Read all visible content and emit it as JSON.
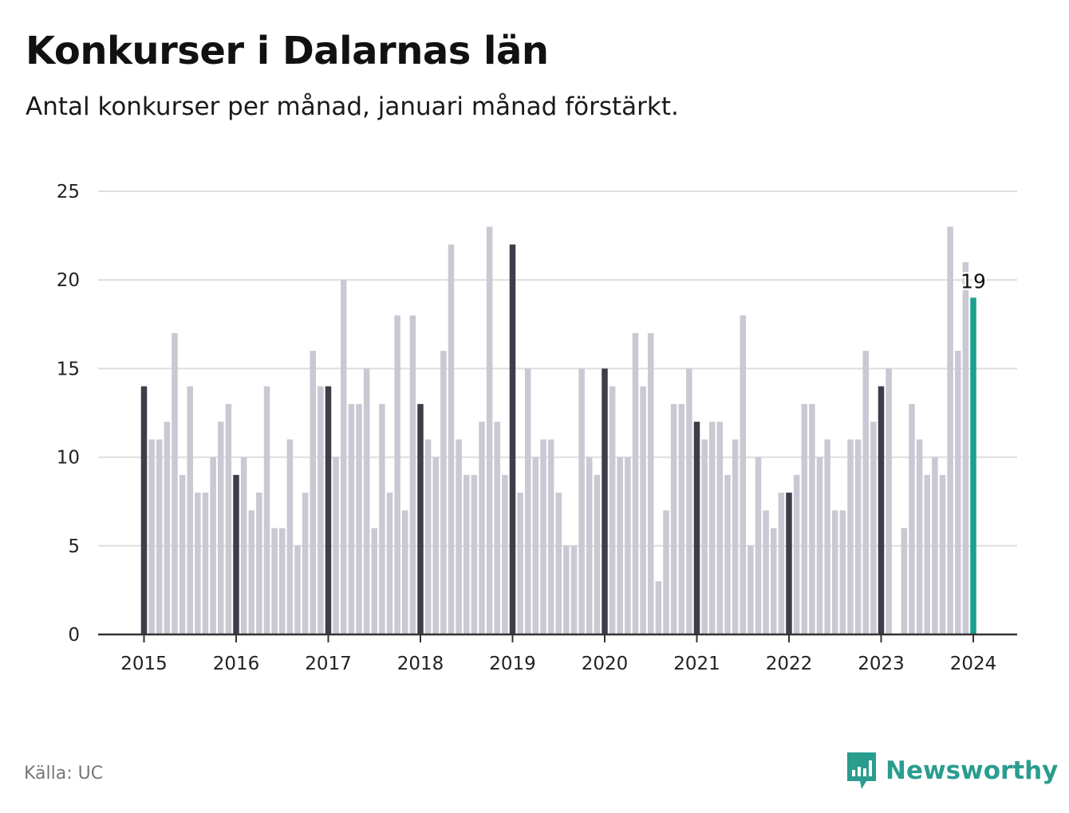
{
  "header": {
    "title": "Konkurser i Dalarnas län",
    "subtitle": "Antal konkurser per månad, januari månad förstärkt."
  },
  "footer": {
    "source": "Källa: UC",
    "brand": "Newsworthy"
  },
  "colors": {
    "january": "#3e3d4a",
    "other": "#c9c8d3",
    "highlight": "#1ba08e",
    "grid": "#dddddd",
    "axis": "#333333",
    "brand": "#2a9d8f"
  },
  "chart_data": {
    "type": "bar",
    "xlabel": "",
    "ylabel": "",
    "ylim": [
      0,
      25
    ],
    "yticks": [
      0,
      5,
      10,
      15,
      20,
      25
    ],
    "grid": true,
    "x_tick_labels": [
      "2015",
      "2016",
      "2017",
      "2018",
      "2019",
      "2020",
      "2021",
      "2022",
      "2023",
      "2024"
    ],
    "start": "2015-01",
    "end": "2024-01",
    "values": [
      14,
      11,
      11,
      12,
      17,
      9,
      14,
      8,
      8,
      10,
      12,
      13,
      9,
      10,
      7,
      8,
      14,
      6,
      6,
      11,
      5,
      8,
      16,
      14,
      14,
      10,
      20,
      13,
      13,
      15,
      6,
      13,
      8,
      18,
      7,
      18,
      13,
      11,
      10,
      16,
      22,
      11,
      9,
      9,
      12,
      23,
      12,
      9,
      22,
      8,
      15,
      10,
      11,
      11,
      8,
      5,
      5,
      15,
      10,
      9,
      15,
      14,
      10,
      10,
      17,
      14,
      17,
      3,
      7,
      13,
      13,
      15,
      12,
      11,
      12,
      12,
      9,
      11,
      18,
      5,
      10,
      7,
      6,
      8,
      8,
      9,
      13,
      13,
      10,
      11,
      7,
      7,
      11,
      11,
      16,
      12,
      14,
      15,
      0,
      6,
      13,
      11,
      9,
      10,
      9,
      23,
      16,
      21,
      19
    ],
    "annotation": {
      "month": "2024-01",
      "value": 19,
      "text": "19"
    }
  }
}
